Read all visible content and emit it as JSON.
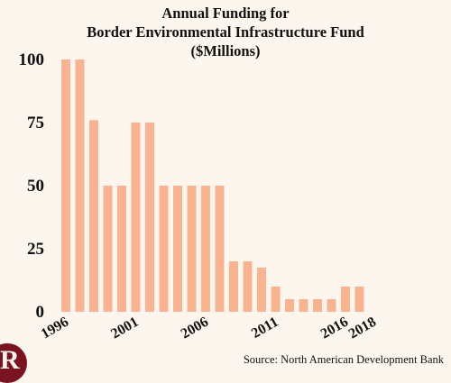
{
  "chart_data": {
    "type": "bar",
    "title_lines": [
      "Annual Funding for",
      "Border Environmental Infrastructure Fund",
      "($Millions)"
    ],
    "categories": [
      "1996",
      "1997",
      "1998",
      "1999",
      "2000",
      "2001",
      "2002",
      "2003",
      "2004",
      "2005",
      "2006",
      "2007",
      "2008",
      "2009",
      "2010",
      "2011",
      "2012",
      "2013",
      "2014",
      "2015",
      "2016",
      "2017",
      "2018"
    ],
    "x_tick_labels": [
      "1996",
      "2001",
      "2006",
      "2011",
      "2016",
      "2018"
    ],
    "values": [
      100,
      100,
      76,
      50,
      50,
      75,
      75,
      50,
      50,
      50,
      50,
      50,
      20,
      20,
      17.5,
      10,
      5,
      5,
      5,
      5,
      10,
      10,
      0
    ],
    "yticks": [
      0,
      25,
      50,
      75,
      100
    ],
    "ylim": [
      0,
      100
    ],
    "xlabel": "",
    "ylabel": "",
    "bar_color": "#f9b48f",
    "grid": false,
    "source": "Source: North American Development Bank"
  },
  "logo": {
    "letter": "R",
    "color": "#7a1220"
  }
}
